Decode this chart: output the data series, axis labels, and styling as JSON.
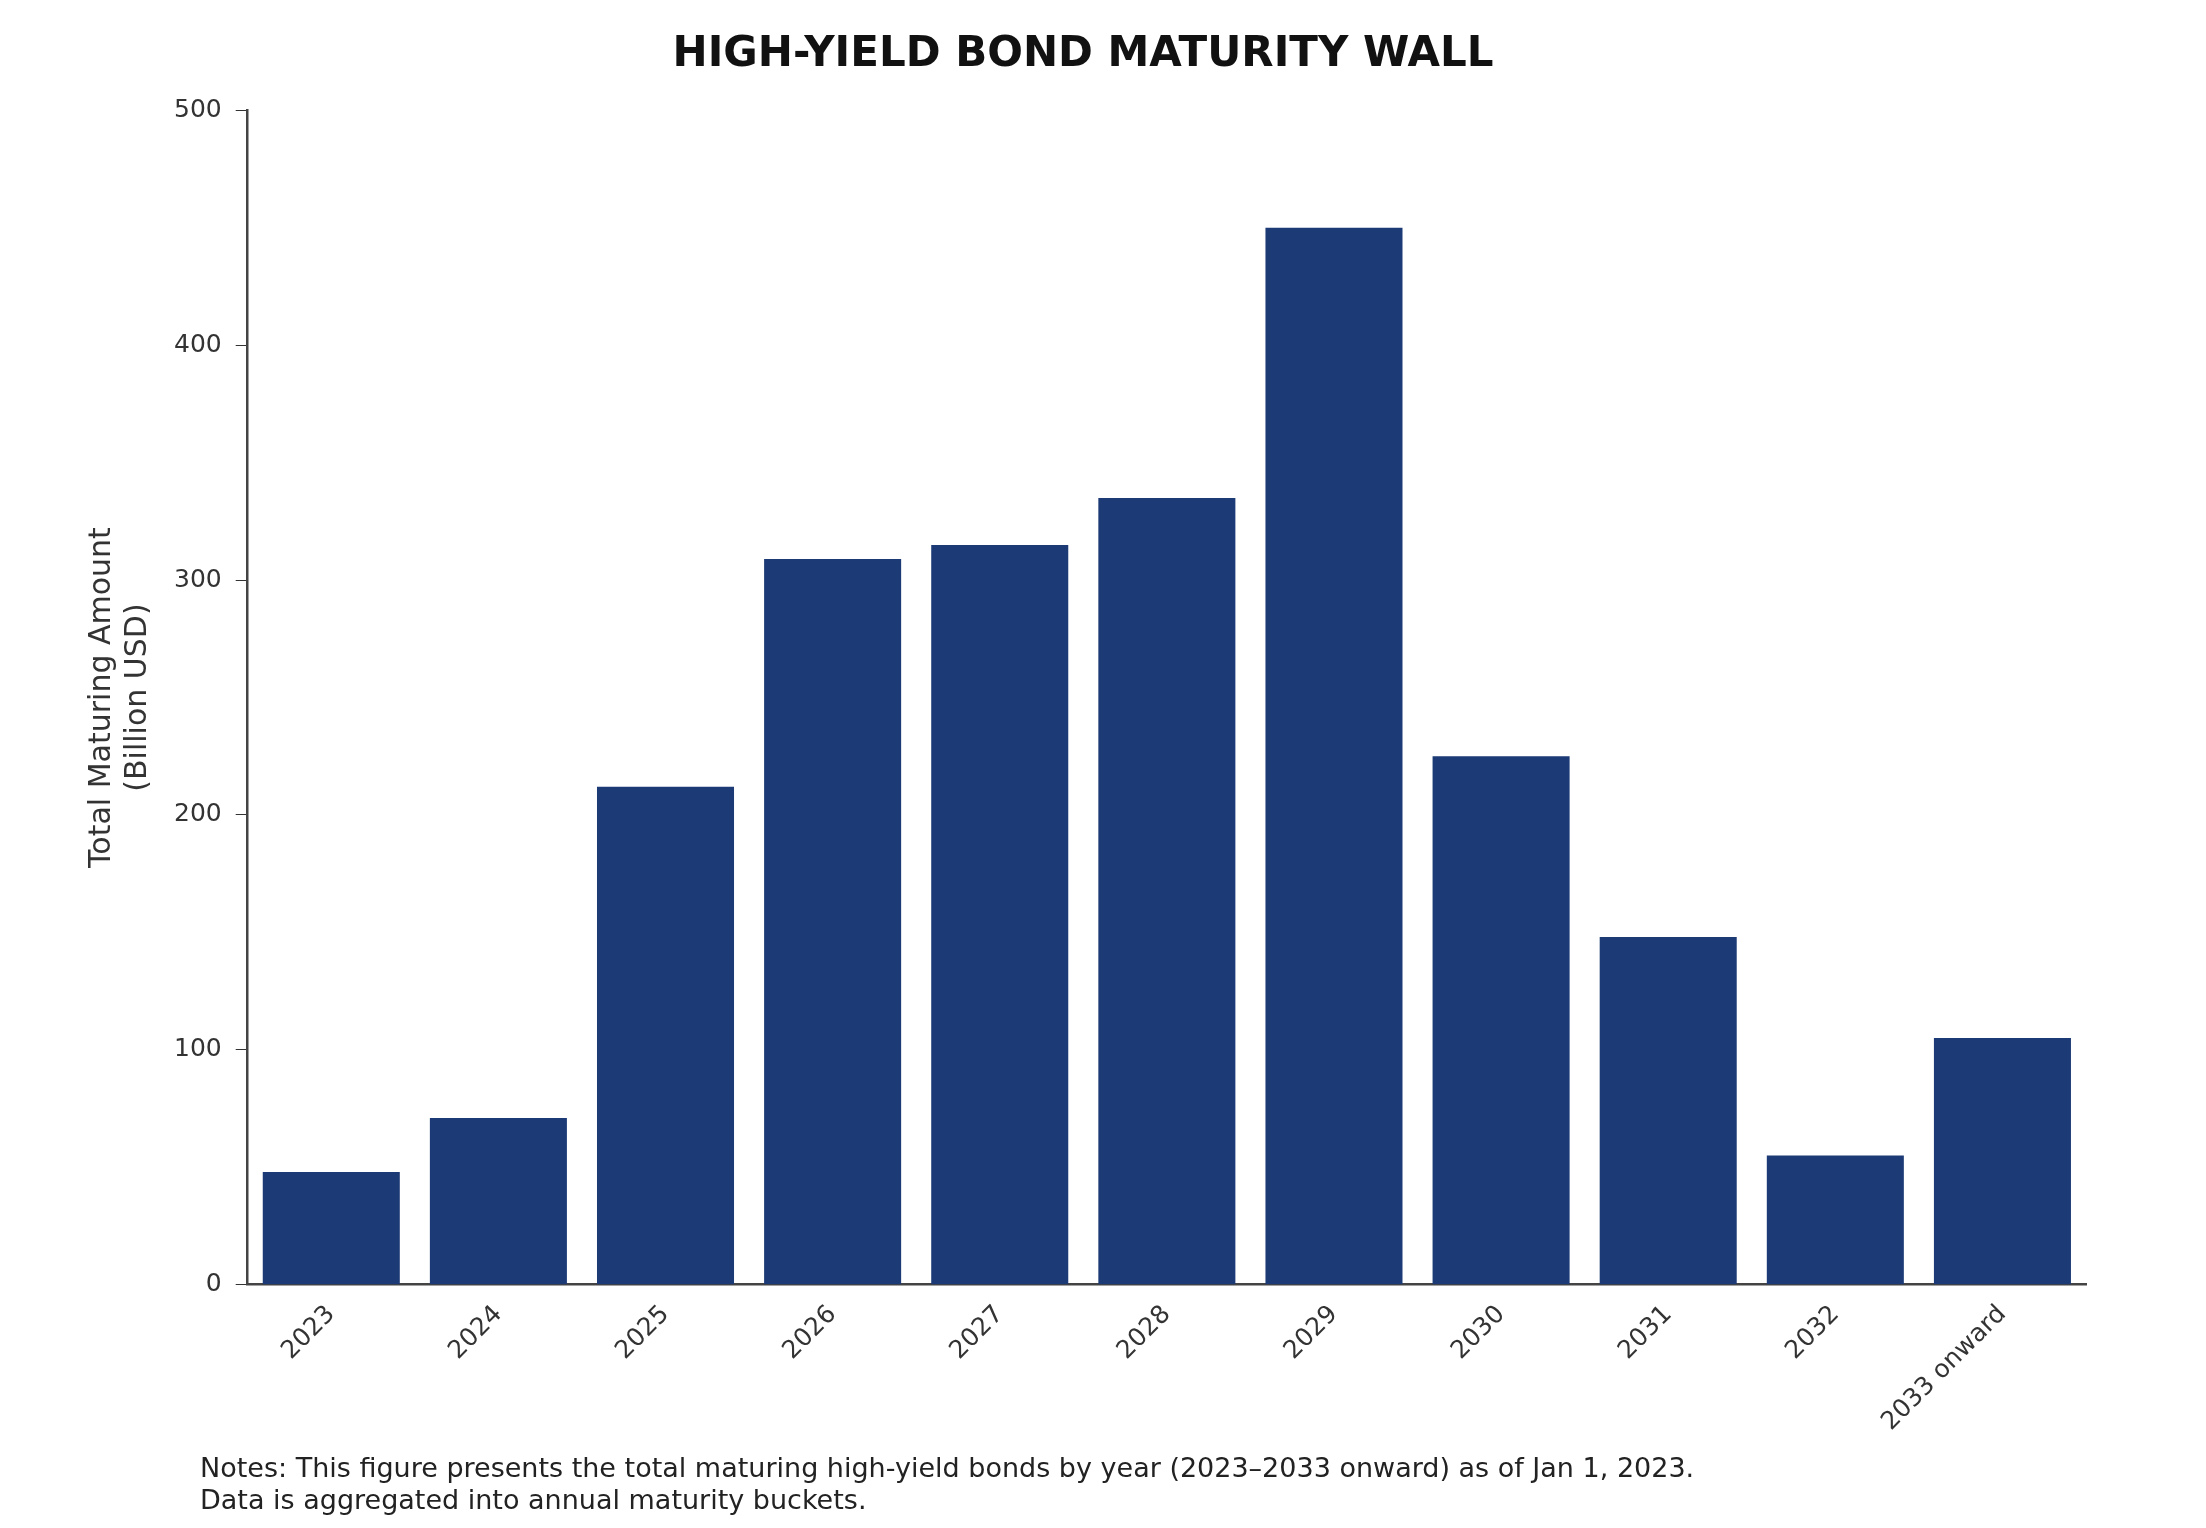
{
  "chart_data": {
    "type": "bar",
    "title": "HIGH-YIELD BOND MATURITY WALL",
    "ylabel": "Total Maturing Amount\n(Billion USD)",
    "categories": [
      "2023",
      "2024",
      "2025",
      "2026",
      "2027",
      "2028",
      "2029",
      "2030",
      "2031",
      "2032",
      "2033 onward"
    ],
    "values": [
      48,
      71,
      212,
      309,
      315,
      335,
      450,
      225,
      148,
      55,
      105
    ],
    "color": "#1c3a75",
    "ylim": [
      0,
      500
    ],
    "yticks": [
      0,
      100,
      200,
      300,
      400,
      500
    ],
    "grid": false,
    "legend": false,
    "annotations": [
      "Notes: This figure presents the total maturing high-yield bonds by year (2023–2033 onward) as of Jan 1, 2023.",
      "Data is aggregated into annual maturity buckets."
    ]
  }
}
